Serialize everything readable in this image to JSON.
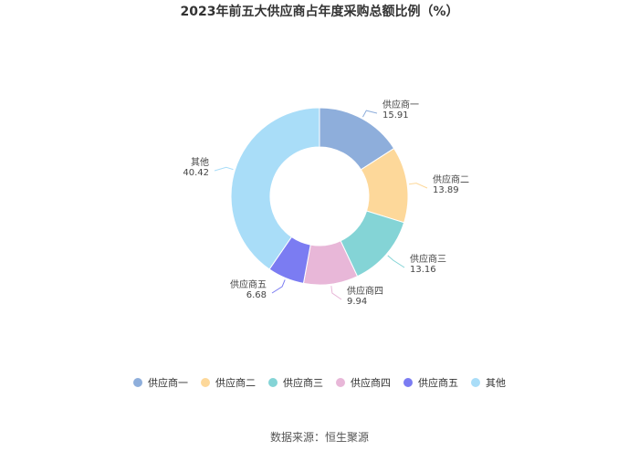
{
  "chart_data": {
    "type": "pie",
    "subtype": "donut",
    "title": "2023年前五大供应商占年度采购总额比例（%）",
    "categories": [
      "供应商一",
      "供应商二",
      "供应商三",
      "供应商四",
      "供应商五",
      "其他"
    ],
    "values": [
      15.91,
      13.89,
      13.16,
      9.94,
      6.68,
      40.42
    ],
    "value_labels": [
      "15.91",
      "13.89",
      "13.16",
      "9.94",
      "6.68",
      "40.42"
    ],
    "colors": [
      "#8eaedb",
      "#fdd89a",
      "#84d4d6",
      "#e8b7d8",
      "#7b7cf2",
      "#a9ddf8"
    ],
    "legend_position": "bottom",
    "source": "数据来源：恒生聚源"
  }
}
